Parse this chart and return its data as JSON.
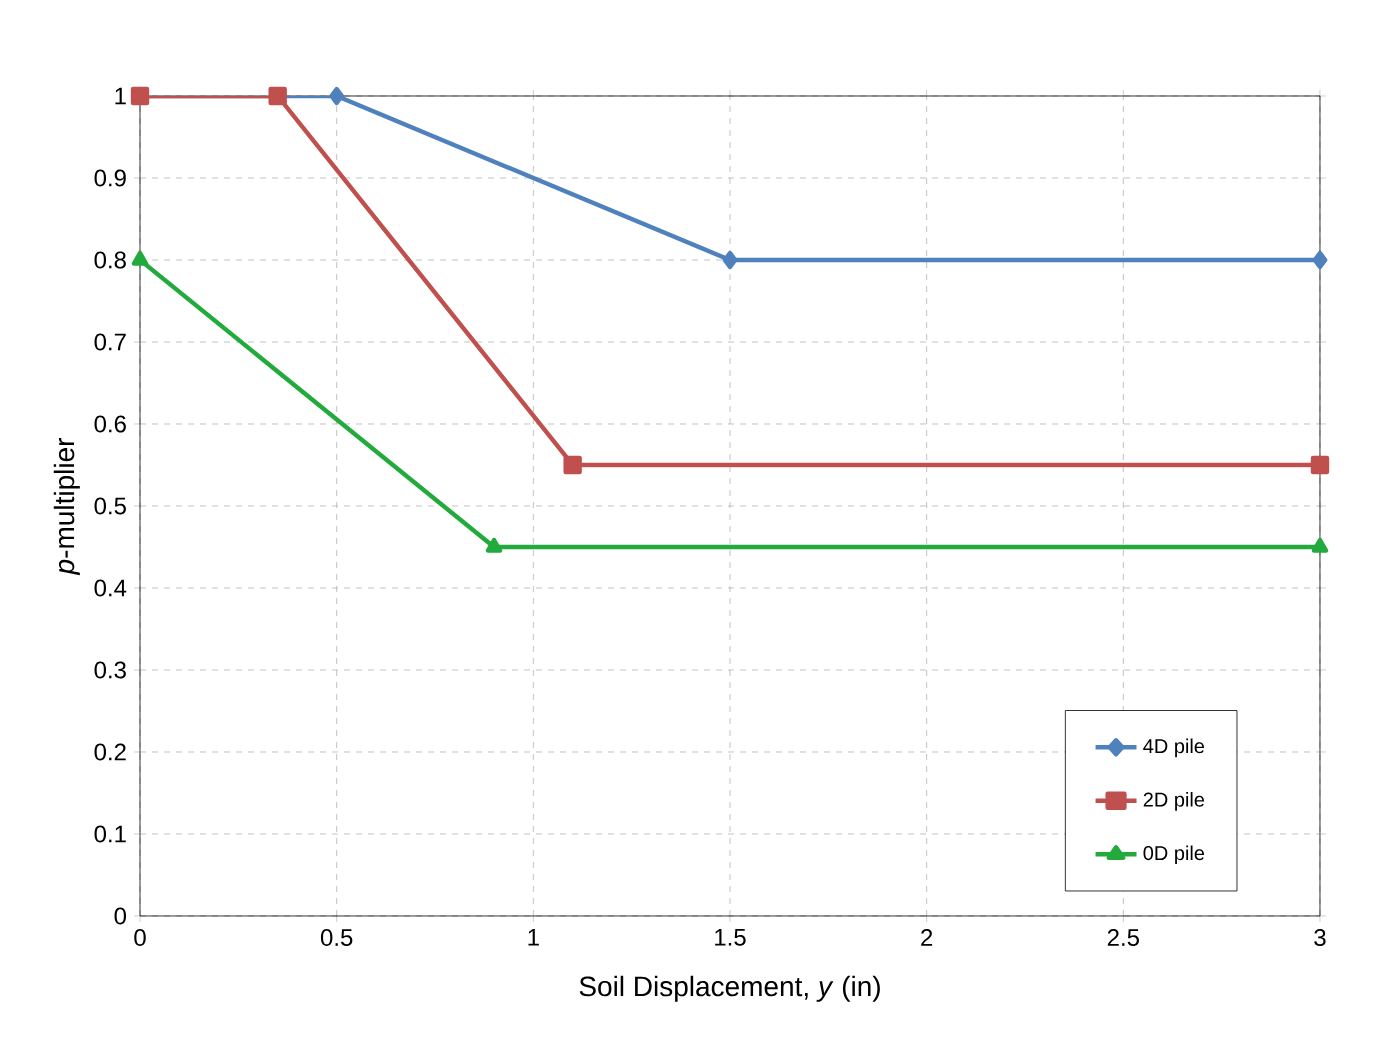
{
  "chart_data": {
    "type": "line",
    "xlabel": "Soil Displacement, *y* (in)",
    "ylabel": "*p*-multiplier",
    "xlim": [
      0,
      3
    ],
    "xticks": [
      0,
      0.5,
      1,
      1.5,
      2,
      2.5,
      3
    ],
    "ylim": [
      0,
      1
    ],
    "yticks": [
      0,
      0.1,
      0.2,
      0.3,
      0.4,
      0.5,
      0.6,
      0.7,
      0.8,
      0.9,
      1
    ],
    "grid": true,
    "legend": "bottom right",
    "series": [
      {
        "name": "4D pile",
        "color": "#4f81bd",
        "marker": "diamond",
        "x": [
          0,
          0.5,
          1.5,
          3
        ],
        "values": [
          1,
          1,
          0.8,
          0.8
        ]
      },
      {
        "name": "2D pile",
        "color": "#c0504d",
        "marker": "square",
        "x": [
          0,
          0.35,
          1.1,
          3
        ],
        "values": [
          1,
          1,
          0.55,
          0.55
        ]
      },
      {
        "name": "0D pile",
        "color": "#22aa3c",
        "marker": "triangle",
        "x": [
          0,
          0.9,
          3
        ],
        "values": [
          0.8,
          0.45,
          0.45
        ]
      }
    ]
  }
}
